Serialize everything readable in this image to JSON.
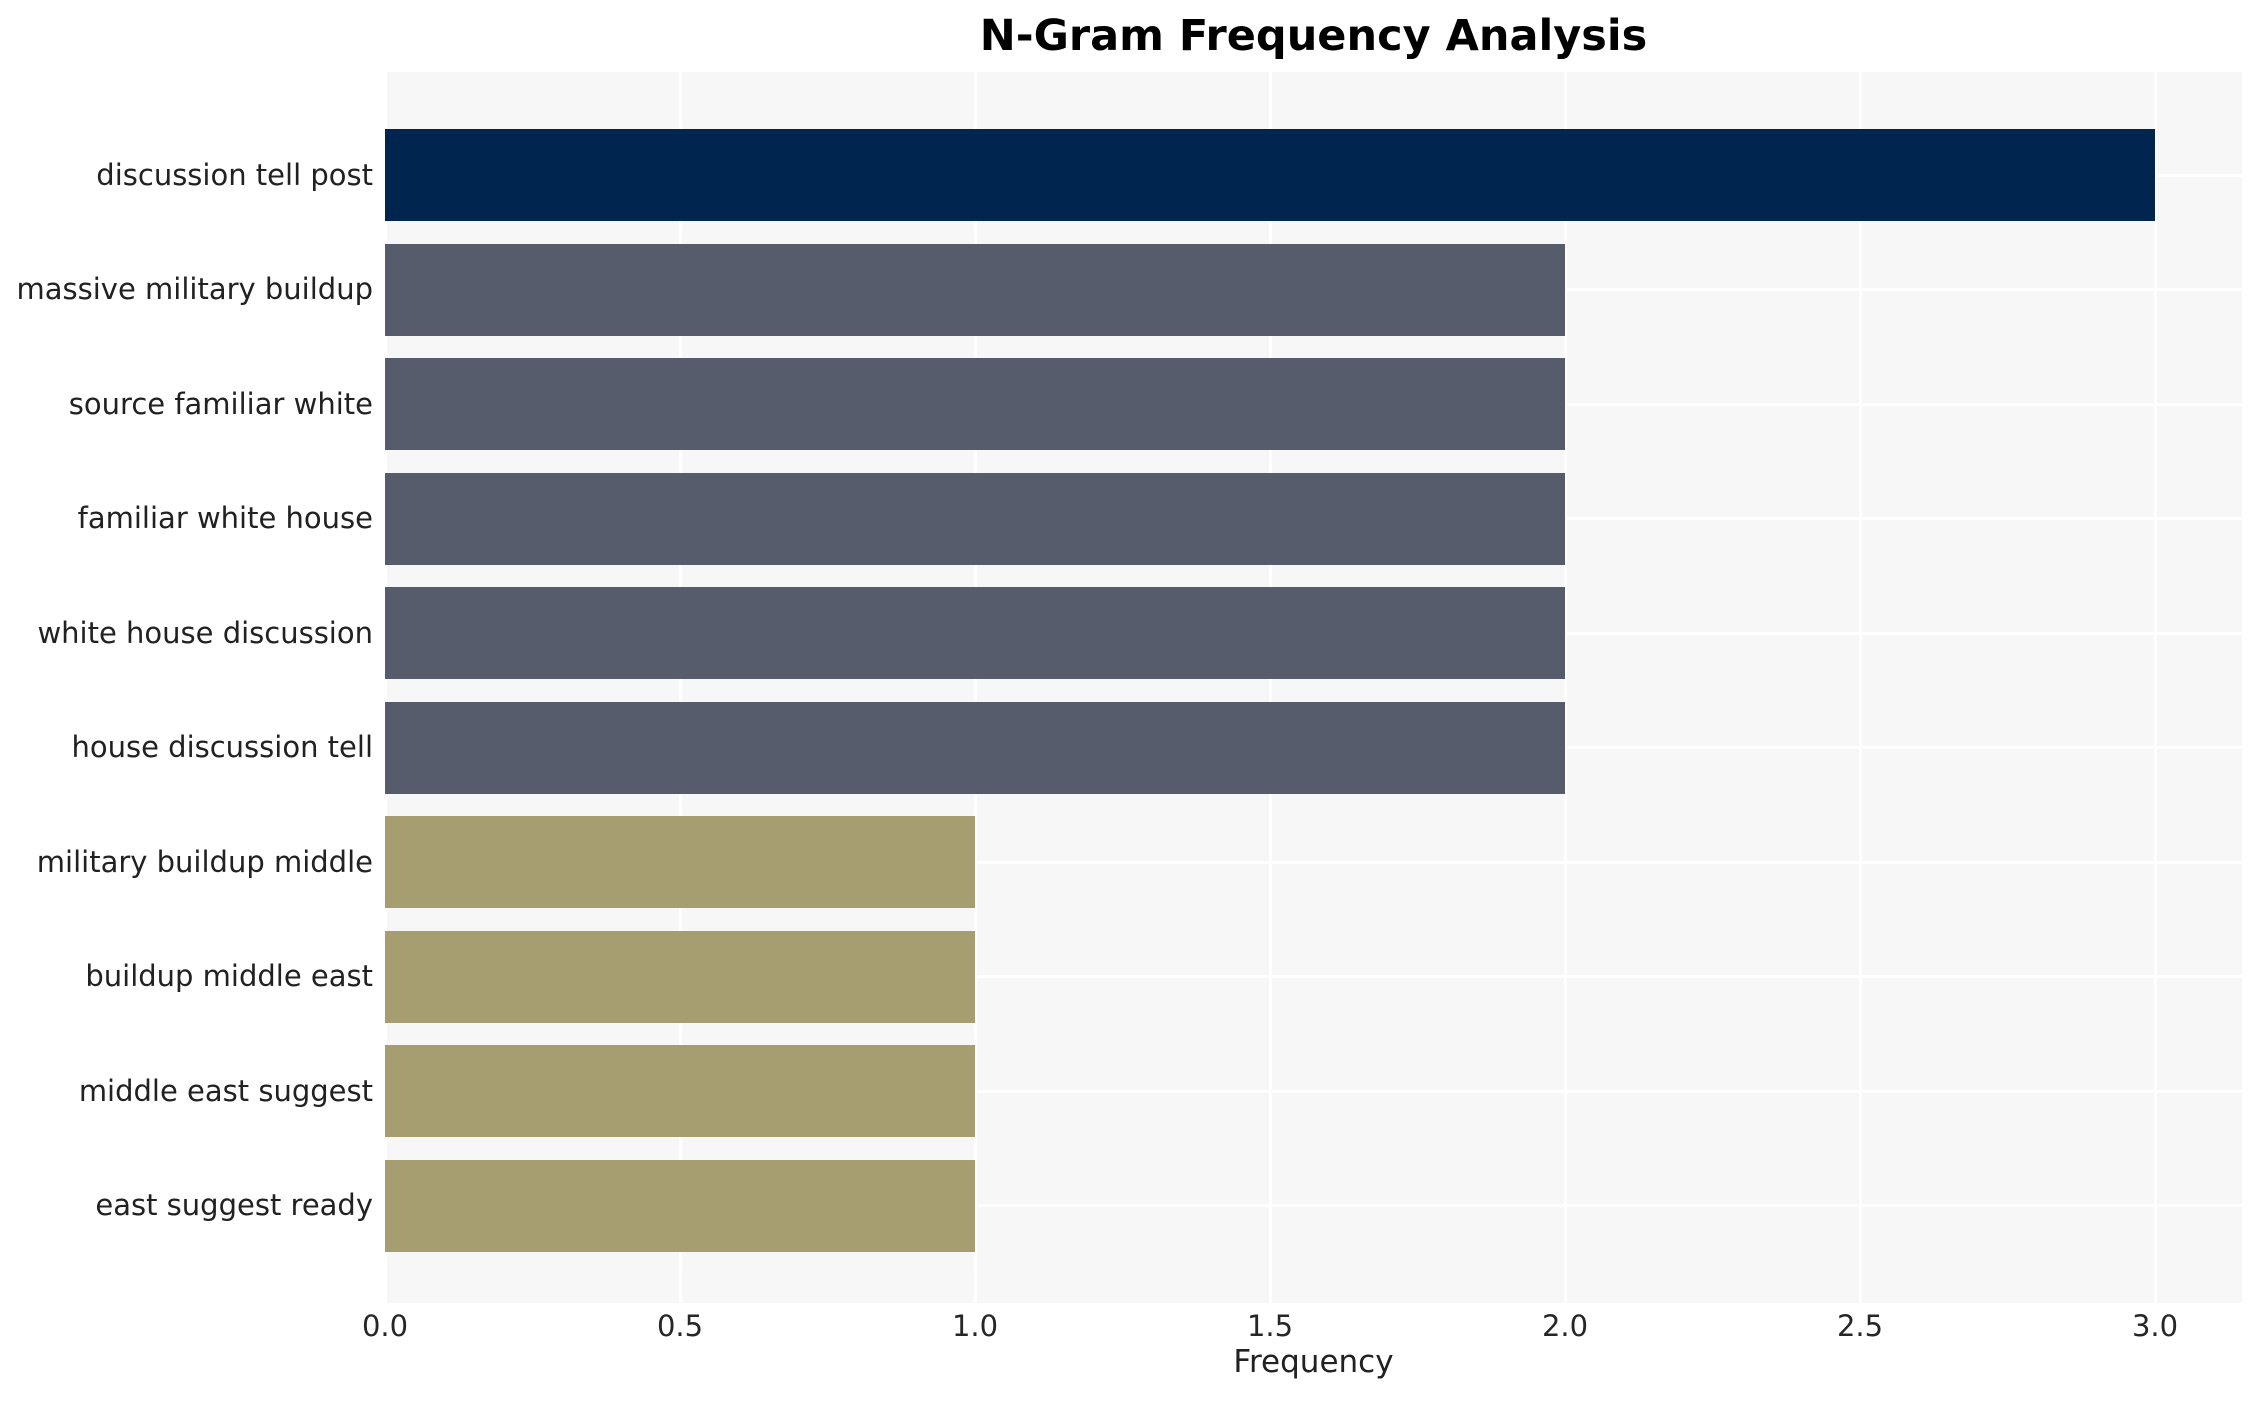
{
  "chart_data": {
    "type": "bar",
    "orientation": "horizontal",
    "title": "N-Gram Frequency Analysis",
    "xlabel": "Frequency",
    "ylabel": "",
    "categories": [
      "discussion tell post",
      "massive military buildup",
      "source familiar white",
      "familiar white house",
      "white house discussion",
      "house discussion tell",
      "military buildup middle",
      "buildup middle east",
      "middle east suggest",
      "east suggest ready"
    ],
    "values": [
      3,
      2,
      2,
      2,
      2,
      2,
      1,
      1,
      1,
      1
    ],
    "bar_colors": [
      "#00254f",
      "#565c6c",
      "#565c6c",
      "#565c6c",
      "#565c6c",
      "#565c6c",
      "#a69d71",
      "#a69d71",
      "#a69d71",
      "#a69d71"
    ],
    "x_tick_labels": [
      "0.0",
      "0.5",
      "1.0",
      "1.5",
      "2.0",
      "2.5",
      "3.0"
    ],
    "x_tick_values": [
      0.0,
      0.5,
      1.0,
      1.5,
      2.0,
      2.5,
      3.0
    ],
    "xlim": [
      0,
      3.15
    ],
    "grid": "on",
    "legend": false,
    "colors": {
      "plot_background": "#f7f7f7",
      "figure_background": "#ffffff",
      "gridline": "#ffffff",
      "title_text": "#000000",
      "label_text": "#212121",
      "bar_group_high": "#00254f",
      "bar_group_mid": "#565c6c",
      "bar_group_low": "#a69d71"
    }
  }
}
